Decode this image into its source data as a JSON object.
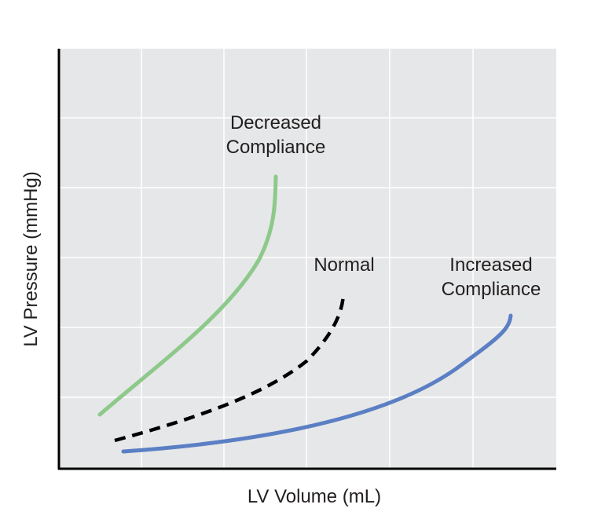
{
  "axes": {
    "x_label": "LV Volume (mL)",
    "y_label": "LV Pressure (mmHg)"
  },
  "curves": [
    {
      "label": [
        "Decreased",
        "Compliance"
      ]
    },
    {
      "label": [
        "Normal"
      ]
    },
    {
      "label": [
        "Increased",
        "Compliance"
      ]
    }
  ]
}
